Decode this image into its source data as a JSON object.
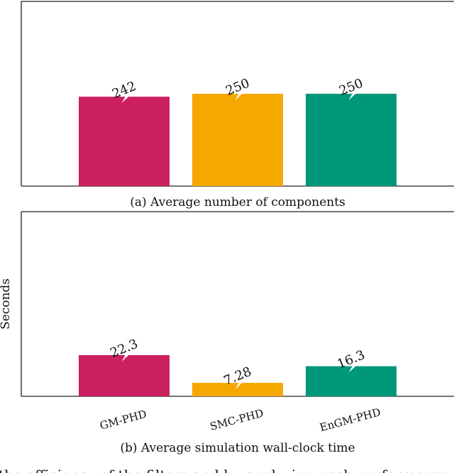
{
  "chart_data": [
    {
      "type": "bar",
      "caption": "(a) Average number of components",
      "categories": [
        "GM-PHD",
        "SMC-PHD",
        "EnGM-PHD"
      ],
      "values": [
        242,
        250,
        250
      ],
      "value_labels": [
        "242",
        "250",
        "250"
      ],
      "colors": [
        "#cc1f5f",
        "#f5a800",
        "#00987a"
      ],
      "ylabel": "",
      "ylim": [
        0,
        500
      ],
      "grid": false
    },
    {
      "type": "bar",
      "caption": "(b) Average simulation wall-clock time",
      "categories": [
        "GM-PHD",
        "SMC-PHD",
        "EnGM-PHD"
      ],
      "values": [
        22.3,
        7.28,
        16.3
      ],
      "value_labels": [
        "22.3",
        "7.28",
        "16.3"
      ],
      "colors": [
        "#cc1f5f",
        "#f5a800",
        "#00987a"
      ],
      "ylabel": "Seconds",
      "ylim": [
        0,
        100
      ],
      "grid": false
    }
  ],
  "footer_text": "the efficiency of the filters and by analyzing each performance"
}
